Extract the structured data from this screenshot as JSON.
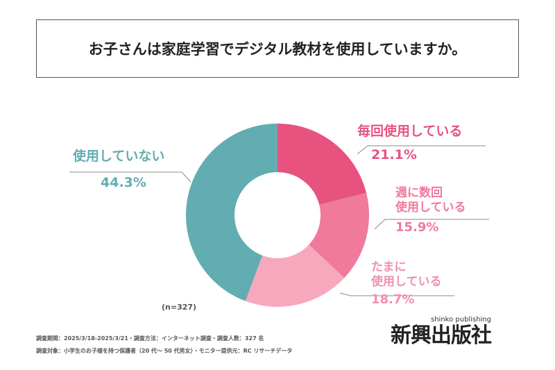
{
  "title": "お子さんは家庭学習でデジタル教材を使用していますか。",
  "chart_data": {
    "type": "pie",
    "donut": true,
    "slices": [
      {
        "label": "毎回使用している",
        "value": 21.1,
        "display": "21.1%",
        "color": "#e8527f"
      },
      {
        "label": "週に数回使用している",
        "line1": "週に数回",
        "line2": "使用している",
        "value": 15.9,
        "display": "15.9%",
        "color": "#ef7a9c"
      },
      {
        "label": "たまに使用している",
        "line1": "たまに",
        "line2": "使用している",
        "value": 18.7,
        "display": "18.7%",
        "color": "#f7a8bd"
      },
      {
        "label": "使用していない",
        "value": 44.3,
        "display": "44.3%",
        "color": "#62adb1"
      }
    ]
  },
  "n_label": "(n=327)",
  "footer": {
    "line1": "調査期間：2025/3/18-2025/3/21・調査方法：インターネット調査・調査人数：327 名",
    "line2": "調査対象：小学生のお子様を持つ保護者（20 代～ 50 代男女）・モニター提供元：RC リサーチデータ"
  },
  "logo": {
    "main": "新興出版社",
    "sub": "shinko publishing"
  }
}
